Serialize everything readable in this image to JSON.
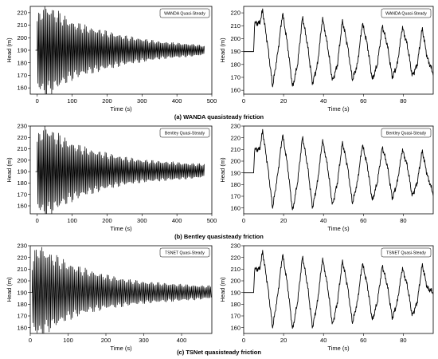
{
  "captions": [
    "(a) WANDA quasisteady friction",
    "(b) Bentley quasisteady friction",
    "(c) TSNet quasisteady friction"
  ],
  "chart_data": [
    {
      "type": "line",
      "row": 0,
      "side": "left",
      "legend": "WANDA Quasi-Steady",
      "xlabel": "Time (s)",
      "ylabel": "Head (m)",
      "xlim": [
        -20,
        500
      ],
      "ylim": [
        155,
        225
      ],
      "xticks": [
        0,
        100,
        200,
        300,
        400,
        500
      ],
      "yticks": [
        160,
        170,
        180,
        190,
        200,
        210,
        220
      ],
      "signal": {
        "steady": 190,
        "t0": 0,
        "t_end": 480,
        "initial_amp": 32,
        "decay": 0.006,
        "period": 3.6,
        "pre_start": -5
      },
      "x": [
        -5,
        0,
        20,
        50,
        100,
        150,
        200,
        250,
        300,
        350,
        400,
        450,
        480
      ],
      "upper_envelope": [
        190,
        213,
        222,
        218,
        210,
        206,
        203,
        200,
        198,
        196,
        195,
        194,
        193
      ],
      "lower_envelope": [
        190,
        165,
        157,
        162,
        170,
        174,
        177,
        180,
        182,
        184,
        185,
        186,
        187
      ]
    },
    {
      "type": "line",
      "row": 0,
      "side": "right",
      "legend": "WANDA Quasi-Steady",
      "xlabel": "Time (s)",
      "ylabel": "Head (m)",
      "xlim": [
        0,
        95
      ],
      "ylim": [
        157,
        225
      ],
      "xticks": [
        0,
        20,
        40,
        60,
        80
      ],
      "yticks": [
        160,
        170,
        180,
        190,
        200,
        210,
        220
      ],
      "x": [
        0,
        5,
        5.5,
        8,
        9.5,
        12,
        14.5,
        17,
        19.5,
        22,
        24.5,
        27,
        29.5,
        32,
        34.5,
        37,
        39.5,
        42,
        44.5,
        47,
        49.5,
        52,
        54.5,
        57,
        59.5,
        62,
        64.5,
        67,
        69.5,
        72,
        74.5,
        77,
        79.5,
        82,
        84.5,
        87,
        89.5,
        92,
        95
      ],
      "y": [
        190,
        190,
        212,
        212,
        222,
        195,
        163,
        188,
        220,
        195,
        162,
        180,
        217,
        195,
        165,
        180,
        216,
        195,
        167,
        180,
        214,
        195,
        168,
        180,
        212,
        195,
        168,
        180,
        210,
        195,
        170,
        180,
        209,
        195,
        171,
        180,
        208,
        185,
        173
      ]
    },
    {
      "type": "line",
      "row": 1,
      "side": "left",
      "legend": "Bentley Quasi-Steady",
      "xlabel": "Time (s)",
      "ylabel": "Head (m)",
      "xlim": [
        -20,
        500
      ],
      "ylim": [
        153,
        230
      ],
      "xticks": [
        0,
        100,
        200,
        300,
        400,
        500
      ],
      "yticks": [
        160,
        170,
        180,
        190,
        200,
        210,
        220,
        230
      ],
      "signal": {
        "steady": 190,
        "t0": 0,
        "t_end": 480,
        "initial_amp": 35,
        "decay": 0.006,
        "period": 3.6,
        "pre_start": -5
      },
      "x": [
        -5,
        0,
        20,
        50,
        100,
        150,
        200,
        250,
        300,
        350,
        400,
        450,
        480
      ],
      "upper_envelope": [
        190,
        216,
        226,
        220,
        212,
        207,
        204,
        201,
        199,
        198,
        197,
        196,
        196
      ],
      "lower_envelope": [
        190,
        163,
        154,
        160,
        168,
        173,
        177,
        180,
        182,
        183,
        184,
        185,
        186
      ]
    },
    {
      "type": "line",
      "row": 1,
      "side": "right",
      "legend": "Bentley Quasi-Steady",
      "xlabel": "Time (s)",
      "ylabel": "Head (m)",
      "xlim": [
        0,
        95
      ],
      "ylim": [
        155,
        230
      ],
      "xticks": [
        0,
        20,
        40,
        60,
        80
      ],
      "yticks": [
        160,
        170,
        180,
        190,
        200,
        210,
        220,
        230
      ],
      "x": [
        0,
        5,
        5.5,
        8,
        9.5,
        12,
        14.5,
        17,
        19.5,
        22,
        24.5,
        27,
        29.5,
        32,
        34.5,
        37,
        39.5,
        42,
        44.5,
        47,
        49.5,
        52,
        54.5,
        57,
        59.5,
        62,
        64.5,
        67,
        69.5,
        72,
        74.5,
        77,
        79.5,
        82,
        84.5,
        87,
        89.5,
        92,
        95
      ],
      "y": [
        190,
        190,
        210,
        210,
        226,
        196,
        160,
        188,
        223,
        196,
        157,
        182,
        221,
        196,
        160,
        182,
        218,
        196,
        162,
        182,
        216,
        196,
        164,
        182,
        214,
        196,
        166,
        182,
        212,
        196,
        168,
        182,
        210,
        196,
        170,
        182,
        209,
        188,
        172
      ]
    },
    {
      "type": "line",
      "row": 2,
      "side": "left",
      "legend": "TSNET Quasi-Steady",
      "xlabel": "Time (s)",
      "ylabel": "Head (m)",
      "xlim": [
        0,
        480
      ],
      "ylim": [
        155,
        230
      ],
      "xticks": [
        0,
        100,
        200,
        300,
        400
      ],
      "yticks": [
        160,
        170,
        180,
        190,
        200,
        210,
        220,
        230
      ],
      "signal": {
        "steady": 190,
        "t0": 5,
        "t_end": 480,
        "initial_amp": 36,
        "decay": 0.005,
        "period": 3.6,
        "pre_start": 0
      },
      "x": [
        0,
        5,
        20,
        50,
        100,
        150,
        200,
        250,
        300,
        350,
        400,
        450,
        480
      ],
      "upper_envelope": [
        190,
        214,
        226,
        220,
        212,
        207,
        203,
        200,
        198,
        197,
        196,
        195,
        195
      ],
      "lower_envelope": [
        190,
        165,
        156,
        162,
        170,
        175,
        178,
        180,
        182,
        183,
        184,
        185,
        186
      ]
    },
    {
      "type": "line",
      "row": 2,
      "side": "right",
      "legend": "TSNET Quasi-Steady",
      "xlabel": "Time (s)",
      "ylabel": "Head (m)",
      "xlim": [
        0,
        95
      ],
      "ylim": [
        155,
        230
      ],
      "xticks": [
        0,
        20,
        40,
        60,
        80
      ],
      "yticks": [
        160,
        170,
        180,
        190,
        200,
        210,
        220,
        230
      ],
      "x": [
        0,
        5,
        5.5,
        8,
        9.5,
        12,
        14.5,
        17,
        19.5,
        22,
        24.5,
        27,
        29.5,
        32,
        34.5,
        37,
        39.5,
        42,
        44.5,
        47,
        49.5,
        52,
        54.5,
        57,
        59.5,
        62,
        64.5,
        67,
        69.5,
        72,
        74.5,
        77,
        79.5,
        82,
        84.5,
        87,
        89.5,
        92,
        95
      ],
      "y": [
        190,
        190,
        210,
        210,
        225,
        196,
        160,
        187,
        223,
        196,
        158,
        182,
        221,
        196,
        160,
        182,
        219,
        196,
        162,
        182,
        217,
        196,
        164,
        182,
        215,
        196,
        166,
        182,
        213,
        196,
        168,
        182,
        211,
        196,
        170,
        182,
        214,
        194,
        190
      ]
    }
  ]
}
